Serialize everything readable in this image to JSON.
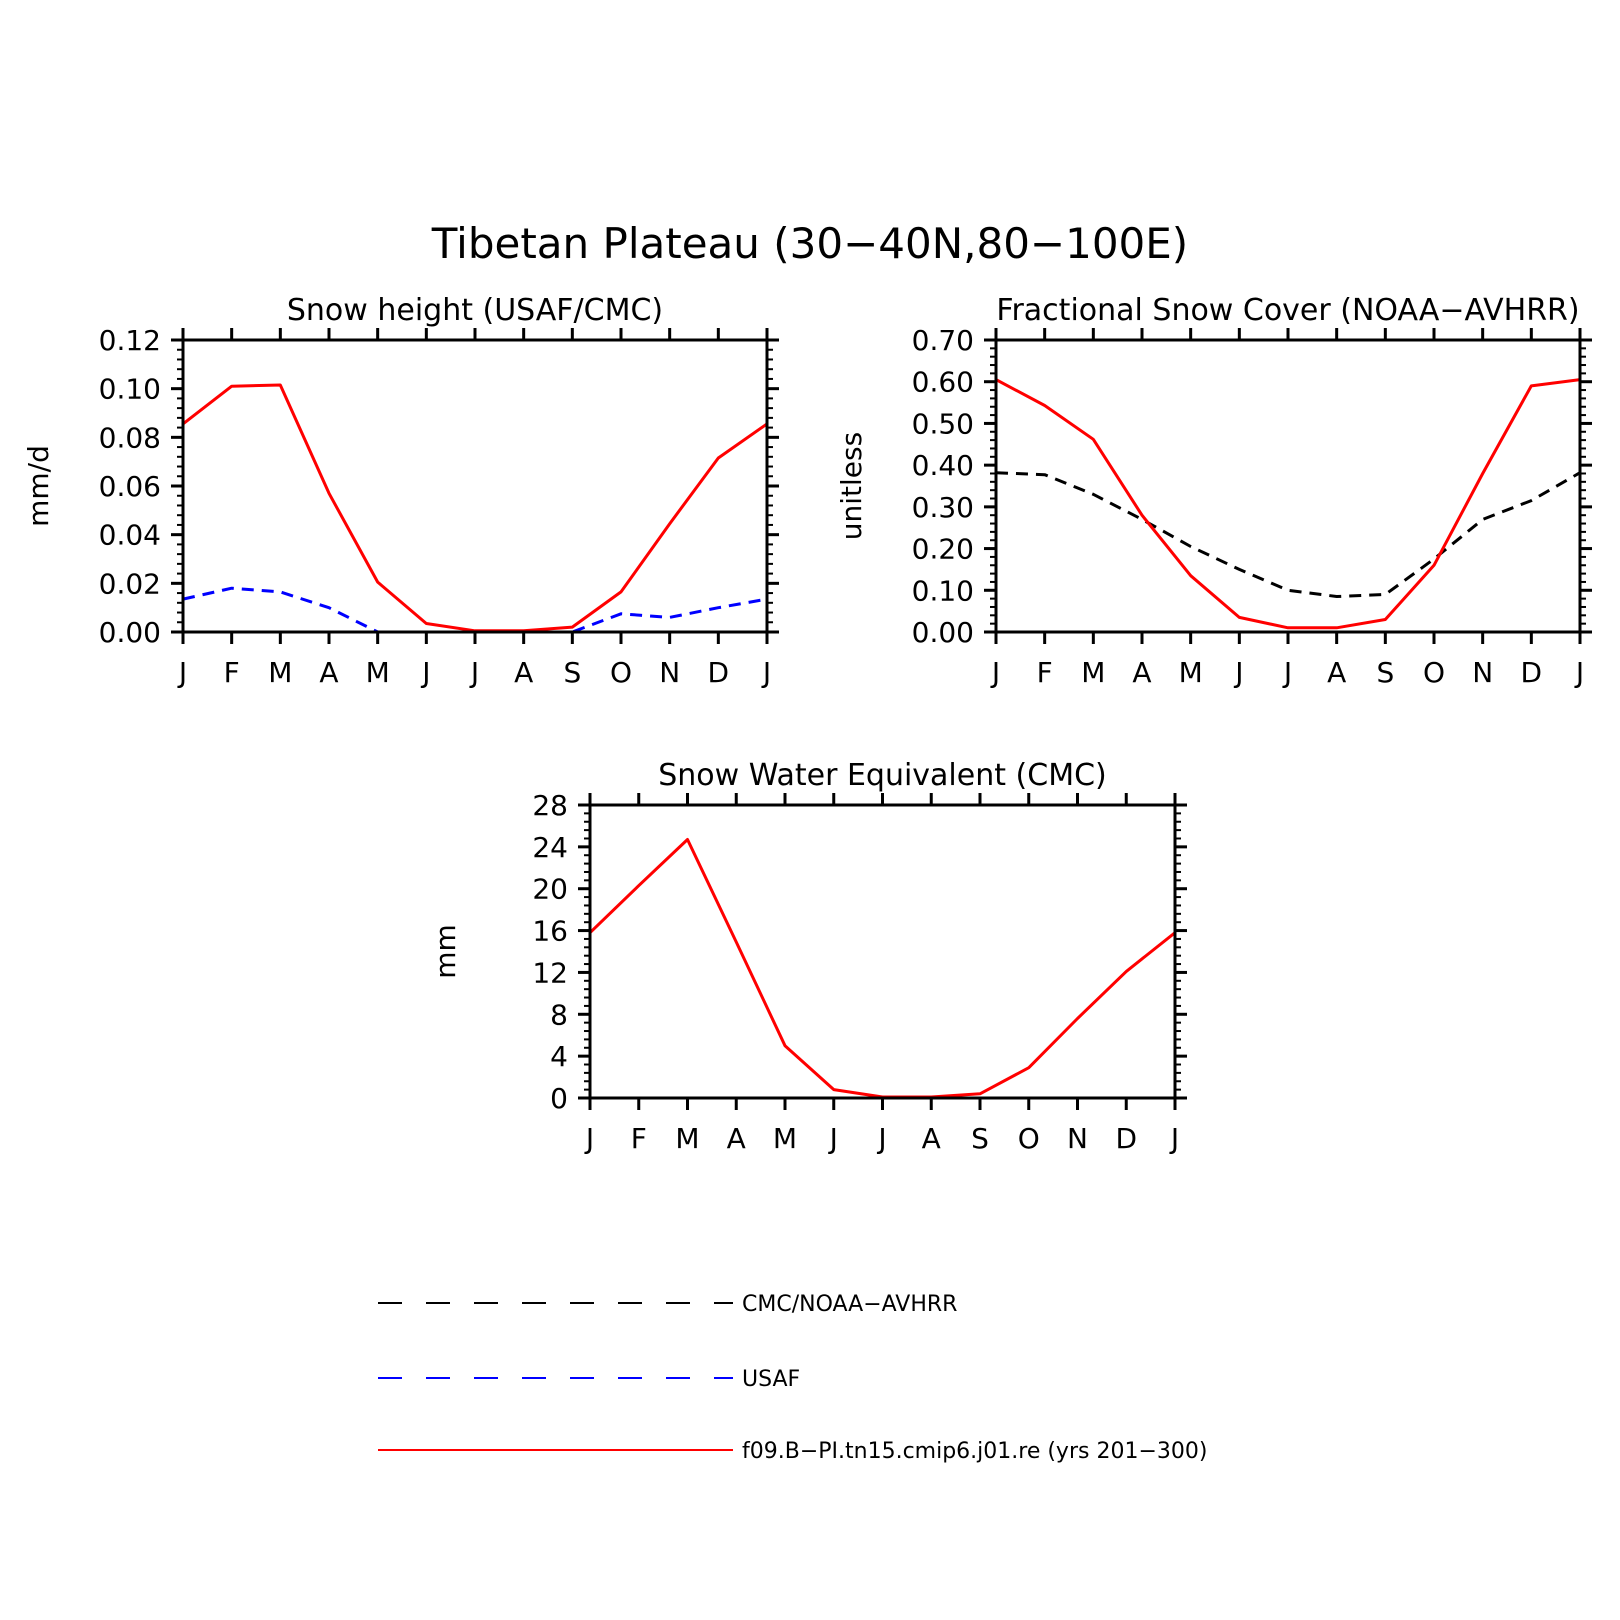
{
  "figure": {
    "title": "Tibetan Plateau (30−40N,80−100E)"
  },
  "colors": {
    "obs_black": "#000000",
    "obs_blue": "#0000ff",
    "model_red": "#ff0000"
  },
  "legend": {
    "entries": [
      {
        "label": "CMC/NOAA−AVHRR",
        "color": "#000000",
        "style": "dashed"
      },
      {
        "label": "USAF",
        "color": "#0000ff",
        "style": "dashed"
      },
      {
        "label": "f09.B−PI.tn15.cmip6.j01.re (yrs 201−300)",
        "color": "#ff0000",
        "style": "solid"
      }
    ]
  },
  "chart_data": [
    {
      "type": "line",
      "title": "Snow height (USAF/CMC)",
      "xlabel": "",
      "ylabel": "mm/d",
      "x": [
        "J",
        "F",
        "M",
        "A",
        "M",
        "J",
        "J",
        "A",
        "S",
        "O",
        "N",
        "D",
        "J"
      ],
      "ylim": [
        0,
        0.12
      ],
      "yticks": [
        "0.00",
        "0.02",
        "0.04",
        "0.06",
        "0.08",
        "0.10",
        "0.12"
      ],
      "grid": false,
      "series": [
        {
          "name": "CMC/NOAA−AVHRR",
          "color": "#000000",
          "style": "dashed",
          "values": [
            0,
            0,
            0,
            0,
            0,
            0,
            0,
            0,
            0,
            0,
            0,
            0,
            0
          ]
        },
        {
          "name": "USAF",
          "color": "#0000ff",
          "style": "dashed",
          "values": [
            0.0135,
            0.018,
            0.0165,
            0.01,
            0.0,
            0.0,
            0.0,
            0.0,
            0.0,
            0.0075,
            0.006,
            0.01,
            0.0135
          ]
        },
        {
          "name": "f09.B−PI.tn15.cmip6.j01.re (yrs 201−300)",
          "color": "#ff0000",
          "style": "solid",
          "values": [
            0.0855,
            0.101,
            0.1015,
            0.057,
            0.0205,
            0.0035,
            0.0005,
            0.0005,
            0.002,
            0.0165,
            0.0445,
            0.0715,
            0.0855
          ]
        }
      ]
    },
    {
      "type": "line",
      "title": "Fractional Snow Cover (NOAA−AVHRR)",
      "xlabel": "",
      "ylabel": "unitless",
      "x": [
        "J",
        "F",
        "M",
        "A",
        "M",
        "J",
        "J",
        "A",
        "S",
        "O",
        "N",
        "D",
        "J"
      ],
      "ylim": [
        0,
        0.7
      ],
      "yticks": [
        "0.00",
        "0.10",
        "0.20",
        "0.30",
        "0.40",
        "0.50",
        "0.60",
        "0.70"
      ],
      "grid": false,
      "series": [
        {
          "name": "CMC/NOAA−AVHRR",
          "color": "#000000",
          "style": "dashed",
          "values": [
            0.382,
            0.377,
            0.33,
            0.27,
            0.205,
            0.15,
            0.1,
            0.085,
            0.09,
            0.175,
            0.27,
            0.315,
            0.382
          ]
        },
        {
          "name": "f09.B−PI.tn15.cmip6.j01.re (yrs 201−300)",
          "color": "#ff0000",
          "style": "solid",
          "values": [
            0.605,
            0.543,
            0.462,
            0.28,
            0.135,
            0.035,
            0.01,
            0.01,
            0.03,
            0.16,
            0.38,
            0.59,
            0.605
          ]
        }
      ]
    },
    {
      "type": "line",
      "title": "Snow Water Equivalent (CMC)",
      "xlabel": "",
      "ylabel": "mm",
      "x": [
        "J",
        "F",
        "M",
        "A",
        "M",
        "J",
        "J",
        "A",
        "S",
        "O",
        "N",
        "D",
        "J"
      ],
      "ylim": [
        0,
        28
      ],
      "yticks": [
        "0",
        "4",
        "8",
        "12",
        "16",
        "20",
        "24",
        "28"
      ],
      "grid": false,
      "series": [
        {
          "name": "CMC/NOAA−AVHRR",
          "color": "#000000",
          "style": "dashed",
          "values": [
            0,
            0,
            0,
            0,
            0,
            0,
            0,
            0,
            0,
            0,
            0,
            0,
            0
          ]
        },
        {
          "name": "f09.B−PI.tn15.cmip6.j01.re (yrs 201−300)",
          "color": "#ff0000",
          "style": "solid",
          "values": [
            15.8,
            20.3,
            24.7,
            14.9,
            5.0,
            0.8,
            0.1,
            0.1,
            0.4,
            2.9,
            7.6,
            12.1,
            15.8
          ]
        }
      ]
    }
  ]
}
